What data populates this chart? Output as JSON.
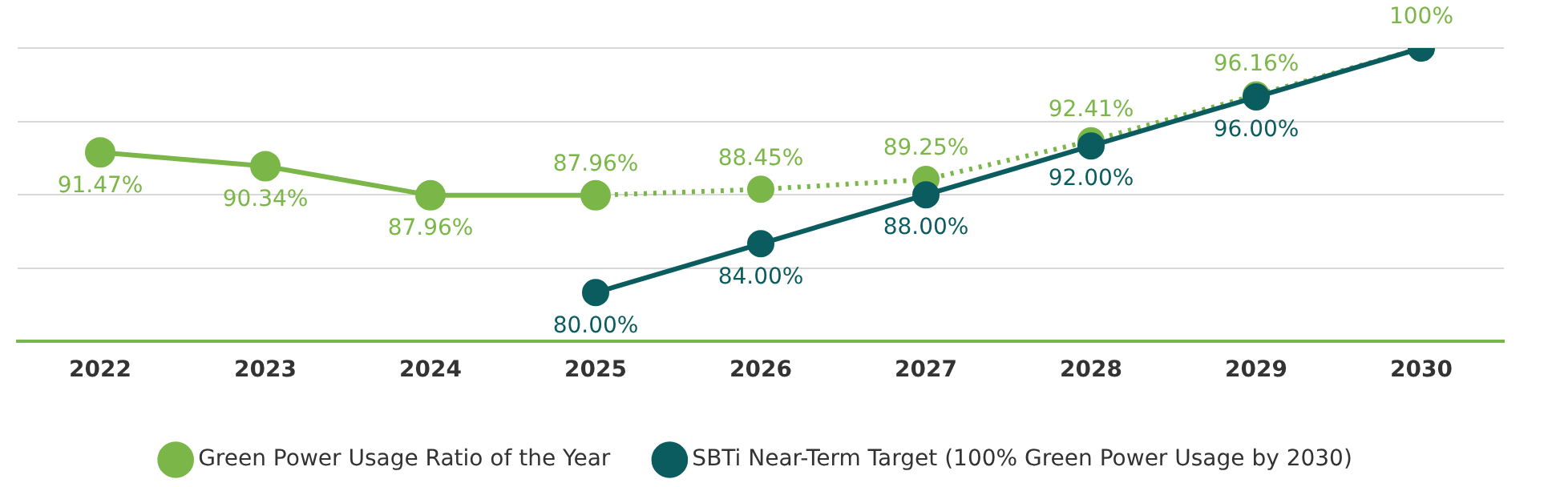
{
  "chart_data": {
    "type": "line",
    "categories": [
      "2022",
      "2023",
      "2024",
      "2025",
      "2026",
      "2027",
      "2028",
      "2029",
      "2030"
    ],
    "series": [
      {
        "name": "Green Power Usage Ratio of the Year",
        "color": "#7ab648",
        "line_style": "solid",
        "values": [
          91.47,
          90.34,
          87.96,
          87.96,
          null,
          null,
          null,
          null,
          null
        ],
        "value_labels": [
          "91.47%",
          "90.34%",
          "87.96%",
          null,
          null,
          null,
          null,
          null,
          null
        ]
      },
      {
        "color": "#7ab648",
        "line_style": "dotted",
        "values": [
          null,
          null,
          null,
          87.96,
          88.45,
          89.25,
          92.41,
          96.16,
          100
        ],
        "value_labels": [
          null,
          null,
          null,
          "87.96%",
          "88.45%",
          "89.25%",
          "92.41%",
          "96.16%",
          "100%"
        ]
      },
      {
        "name": "SBTi Near-Term Target (100% Green Power Usage by 2030)",
        "color": "#0b5c5e",
        "line_style": "solid",
        "values": [
          null,
          null,
          null,
          80,
          84,
          88,
          92,
          96,
          100
        ],
        "value_labels": [
          null,
          null,
          null,
          "80.00%",
          "84.00%",
          "88.00%",
          "92.00%",
          "96.00%",
          null
        ]
      }
    ],
    "ylim": [
      76,
      100
    ],
    "yticks": [
      {
        "value": 76,
        "label": null
      },
      {
        "value": 82,
        "label": null
      },
      {
        "value": 88,
        "label": null
      },
      {
        "value": 94,
        "label": null
      },
      {
        "value": 100,
        "label": null
      }
    ],
    "tick_labels": "x",
    "grid": "y",
    "marker": "circle",
    "legend": "bottom"
  }
}
